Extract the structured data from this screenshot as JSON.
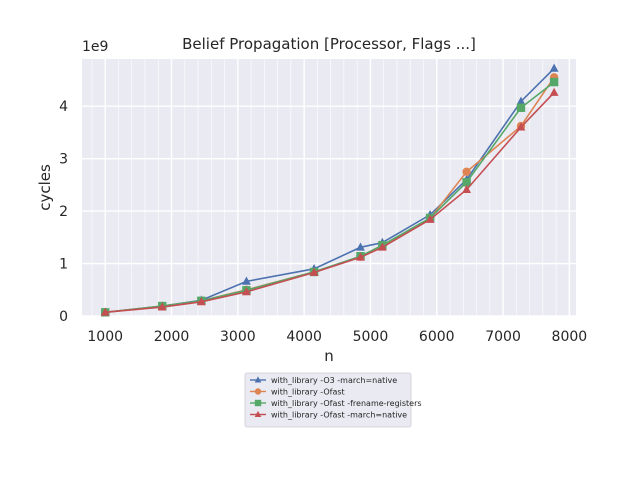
{
  "chart_data": {
    "type": "line",
    "title": "Belief Propagation [Processor, Flags ...]",
    "xlabel": "n",
    "ylabel": "cycles",
    "y_multiplier_label": "1e9",
    "xlim": [
      650,
      8100
    ],
    "ylim": [
      0,
      4.9
    ],
    "x_ticks": [
      1000,
      2000,
      3000,
      4000,
      5000,
      6000,
      7000,
      8000
    ],
    "y_ticks": [
      0,
      1,
      2,
      3,
      4
    ],
    "grid": true,
    "legend_position": "below",
    "series": [
      {
        "name": "with_library -O3 -march=native",
        "color": "#4c72b0",
        "marker": "triangle",
        "x": [
          1000,
          1860,
          2450,
          3130,
          4150,
          4850,
          5180,
          5900,
          6450,
          7270,
          7770
        ],
        "y": [
          0.07,
          0.19,
          0.3,
          0.66,
          0.9,
          1.31,
          1.4,
          1.93,
          2.6,
          4.09,
          4.72
        ]
      },
      {
        "name": "with_library -Ofast",
        "color": "#dd8452",
        "marker": "circle",
        "x": [
          1000,
          1860,
          2450,
          3130,
          4150,
          4850,
          5180,
          5900,
          6450,
          7270,
          7770
        ],
        "y": [
          0.07,
          0.19,
          0.29,
          0.5,
          0.84,
          1.13,
          1.34,
          1.86,
          2.75,
          3.62,
          4.55
        ]
      },
      {
        "name": "with_library -Ofast -frename-registers",
        "color": "#55a868",
        "marker": "square",
        "x": [
          1000,
          1860,
          2450,
          3130,
          4150,
          4850,
          5180,
          5900,
          6450,
          7270,
          7770
        ],
        "y": [
          0.07,
          0.19,
          0.29,
          0.49,
          0.84,
          1.14,
          1.35,
          1.87,
          2.55,
          3.97,
          4.46
        ]
      },
      {
        "name": "with_library -Ofast -march=native",
        "color": "#c44e52",
        "marker": "triangle",
        "x": [
          1000,
          1860,
          2450,
          3130,
          4150,
          4850,
          5180,
          5900,
          6450,
          7270,
          7770
        ],
        "y": [
          0.07,
          0.17,
          0.27,
          0.46,
          0.83,
          1.12,
          1.31,
          1.84,
          2.41,
          3.6,
          4.26
        ]
      }
    ]
  }
}
